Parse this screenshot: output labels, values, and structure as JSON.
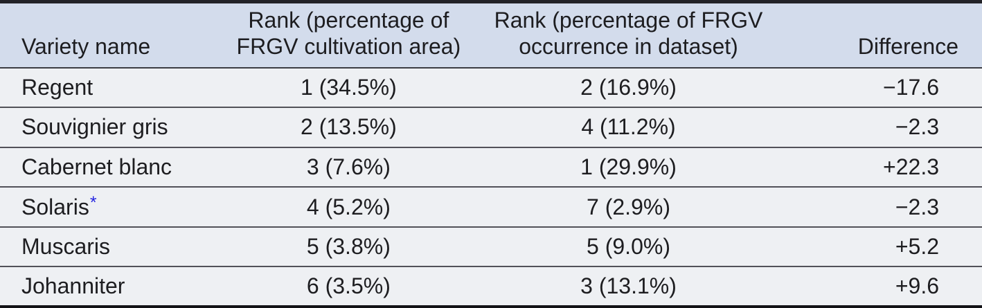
{
  "colors": {
    "header_background": "#d3dcec",
    "row_background": "#eef0f3",
    "text": "#1d1d20",
    "rule_top": "#222228",
    "rule_bottom": "#121216",
    "row_separator": "#515158",
    "footnote_marker_blue": "#2525e0"
  },
  "table": {
    "columns": [
      {
        "id": "variety",
        "label": "Variety name"
      },
      {
        "id": "rank_area",
        "label": "Rank (percentage of\nFRGV cultivation area)"
      },
      {
        "id": "rank_dataset",
        "label": "Rank (percentage of FRGV\noccurrence in dataset)"
      },
      {
        "id": "difference",
        "label": "Difference"
      }
    ],
    "rows": [
      {
        "variety": "Regent",
        "footnote_marker": "",
        "rank_area": "1 (34.5%)",
        "rank_dataset": "2 (16.9%)",
        "difference": "−17.6"
      },
      {
        "variety": "Souvignier gris",
        "footnote_marker": "",
        "rank_area": "2 (13.5%)",
        "rank_dataset": "4 (11.2%)",
        "difference": "−2.3"
      },
      {
        "variety": "Cabernet blanc",
        "footnote_marker": "",
        "rank_area": "3 (7.6%)",
        "rank_dataset": "1 (29.9%)",
        "difference": "+22.3"
      },
      {
        "variety": "Solaris",
        "footnote_marker": "*",
        "rank_area": "4 (5.2%)",
        "rank_dataset": "7 (2.9%)",
        "difference": "−2.3"
      },
      {
        "variety": "Muscaris",
        "footnote_marker": "",
        "rank_area": "5 (3.8%)",
        "rank_dataset": "5 (9.0%)",
        "difference": "+5.2"
      },
      {
        "variety": "Johanniter",
        "footnote_marker": "",
        "rank_area": "6 (3.5%)",
        "rank_dataset": "3 (13.1%)",
        "difference": "+9.6"
      }
    ]
  }
}
